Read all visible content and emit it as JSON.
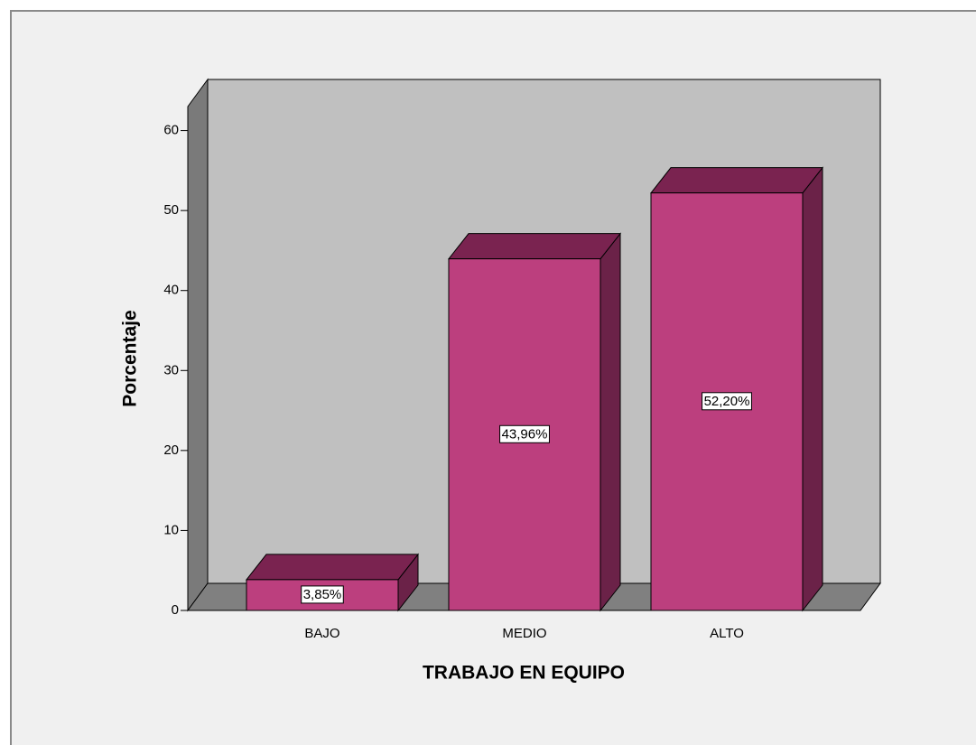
{
  "chart_data": {
    "type": "bar3d",
    "categories": [
      "BAJO",
      "MEDIO",
      "ALTO"
    ],
    "values": [
      3.85,
      43.96,
      52.2
    ],
    "value_labels": [
      "3,85%",
      "43,96%",
      "52,20%"
    ],
    "color": "#bc3f7e",
    "xlabel": "TRABAJO EN EQUIPO",
    "ylabel": "Porcentaje",
    "ylim": [
      0,
      63
    ],
    "yticks": [
      0,
      10,
      20,
      30,
      40,
      50,
      60
    ]
  }
}
